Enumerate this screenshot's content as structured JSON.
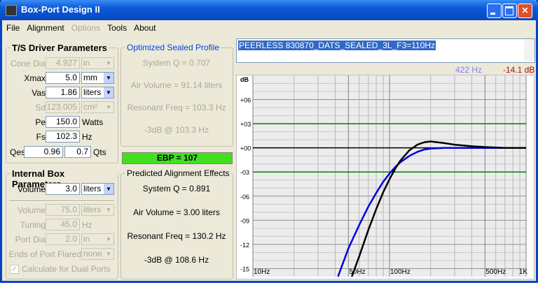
{
  "window": {
    "title": "Box-Port Design II"
  },
  "menu": [
    {
      "label": "File",
      "enabled": true
    },
    {
      "label": "Alignment",
      "enabled": true
    },
    {
      "label": "Options",
      "enabled": false
    },
    {
      "label": "Tools",
      "enabled": true
    },
    {
      "label": "About",
      "enabled": true
    }
  ],
  "driver": {
    "title": "T/S Driver Parameters",
    "rows": [
      {
        "label": "Cone Dia",
        "value": "4.927",
        "unit": "in",
        "dropdown": true,
        "enabled": false
      },
      {
        "label": "Xmax",
        "value": "5.0",
        "unit": "mm",
        "dropdown": true,
        "enabled": true
      },
      {
        "label": "Vas",
        "value": "1.86",
        "unit": "liters",
        "dropdown": true,
        "enabled": true
      },
      {
        "label": "Sd",
        "value": "123.005",
        "unit": "cm²",
        "dropdown": true,
        "enabled": false
      },
      {
        "label": "Pe",
        "value": "150.0",
        "unit": "Watts",
        "dropdown": false,
        "enabled": true
      },
      {
        "label": "Fs",
        "value": "102.3",
        "unit": "Hz",
        "dropdown": false,
        "enabled": true
      }
    ],
    "qes": {
      "label": "Qes",
      "value": "0.96"
    },
    "qts": {
      "label": "Qts",
      "value": "0.7"
    }
  },
  "optimized": {
    "title": "Optimized Sealed Profile",
    "lines": [
      "System Q = 0.707",
      "Air Volume = 91.14 liters",
      "Resonant Freq = 103.3 Hz",
      "-3dB @ 103.3 Hz"
    ]
  },
  "ebp": "EBP = 107",
  "box": {
    "title": "Internal Box Parameters",
    "rows": [
      {
        "label": "Volume",
        "value": "3.0",
        "unit": "liters",
        "dropdown": true,
        "enabled": true
      },
      {
        "label": "Volume",
        "value": "75.0",
        "unit": "liters",
        "dropdown": true,
        "enabled": false
      },
      {
        "label": "Tuning",
        "value": "45.0",
        "unit": "Hz",
        "dropdown": false,
        "enabled": false
      },
      {
        "label": "Port Dia",
        "value": "2.0",
        "unit": "in",
        "dropdown": true,
        "enabled": false
      },
      {
        "label": "Ends of Port Flared",
        "unit": "none",
        "dropdown": true,
        "enabled": false
      }
    ],
    "checkbox": {
      "label": "Calculate for Dual Ports",
      "checked": true,
      "enabled": false
    }
  },
  "predicted": {
    "title": "Predicted Alignment Effects",
    "lines": [
      "System Q = 0.891",
      "Air Volume = 3.00 liters",
      "Resonant Freq = 130.2 Hz",
      "-3dB @ 108.6 Hz"
    ]
  },
  "driver_file": "PEERLESS 830870_DATS_SEALED_3L_F3=110Hz",
  "cursor": {
    "freq": "422 Hz",
    "level": "-14.1 dB"
  },
  "chart_data": {
    "type": "line",
    "y_label": "dB",
    "log_x": true,
    "xlim": [
      10,
      1000
    ],
    "ylim": [
      -16,
      9
    ],
    "xticks": [
      {
        "value": 10,
        "label": "10Hz"
      },
      {
        "value": 50,
        "label": "50Hz"
      },
      {
        "value": 100,
        "label": "100Hz"
      },
      {
        "value": 500,
        "label": "500Hz"
      },
      {
        "value": 1000,
        "label": "1K"
      }
    ],
    "xminor": [
      20,
      30,
      40,
      60,
      70,
      80,
      90,
      200,
      300,
      400,
      600,
      700,
      800,
      900
    ],
    "yticks": [
      {
        "value": 6,
        "label": "+06"
      },
      {
        "value": 3,
        "label": "+03"
      },
      {
        "value": 0,
        "label": "+00"
      },
      {
        "value": -3,
        "label": "-03"
      },
      {
        "value": -6,
        "label": "-06"
      },
      {
        "value": -9,
        "label": "-09"
      },
      {
        "value": -12,
        "label": "-12"
      },
      {
        "value": -15,
        "label": "-15"
      }
    ],
    "yminor": [
      8,
      7,
      5,
      4,
      2,
      1,
      -1,
      -2,
      -4,
      -5,
      -7,
      -8,
      -10,
      -11,
      -13,
      -14
    ],
    "ref_lines": [
      {
        "value": 3,
        "color": "#008000"
      },
      {
        "value": 0,
        "color": "#000000"
      },
      {
        "value": -3,
        "color": "#008000"
      }
    ],
    "series": [
      {
        "color": "#0000e0",
        "x": [
          42,
          50,
          60,
          70,
          80,
          90,
          100,
          110,
          120,
          140,
          160,
          180,
          200,
          250,
          300,
          500,
          1000
        ],
        "values": [
          -16,
          -12.5,
          -9.6,
          -7.3,
          -5.6,
          -4.2,
          -3.2,
          -2.4,
          -1.8,
          -1.0,
          -0.5,
          -0.2,
          -0.1,
          0,
          0,
          0,
          0
        ]
      },
      {
        "color": "#000000",
        "x": [
          53,
          60,
          70,
          80,
          90,
          100,
          110,
          120,
          140,
          160,
          180,
          200,
          250,
          300,
          400,
          500,
          700,
          1000
        ],
        "values": [
          -16,
          -13.5,
          -10.2,
          -7.6,
          -5.5,
          -3.9,
          -2.6,
          -1.6,
          -0.3,
          0.4,
          0.7,
          0.8,
          0.6,
          0.4,
          0.2,
          0.1,
          0,
          0
        ]
      }
    ]
  }
}
